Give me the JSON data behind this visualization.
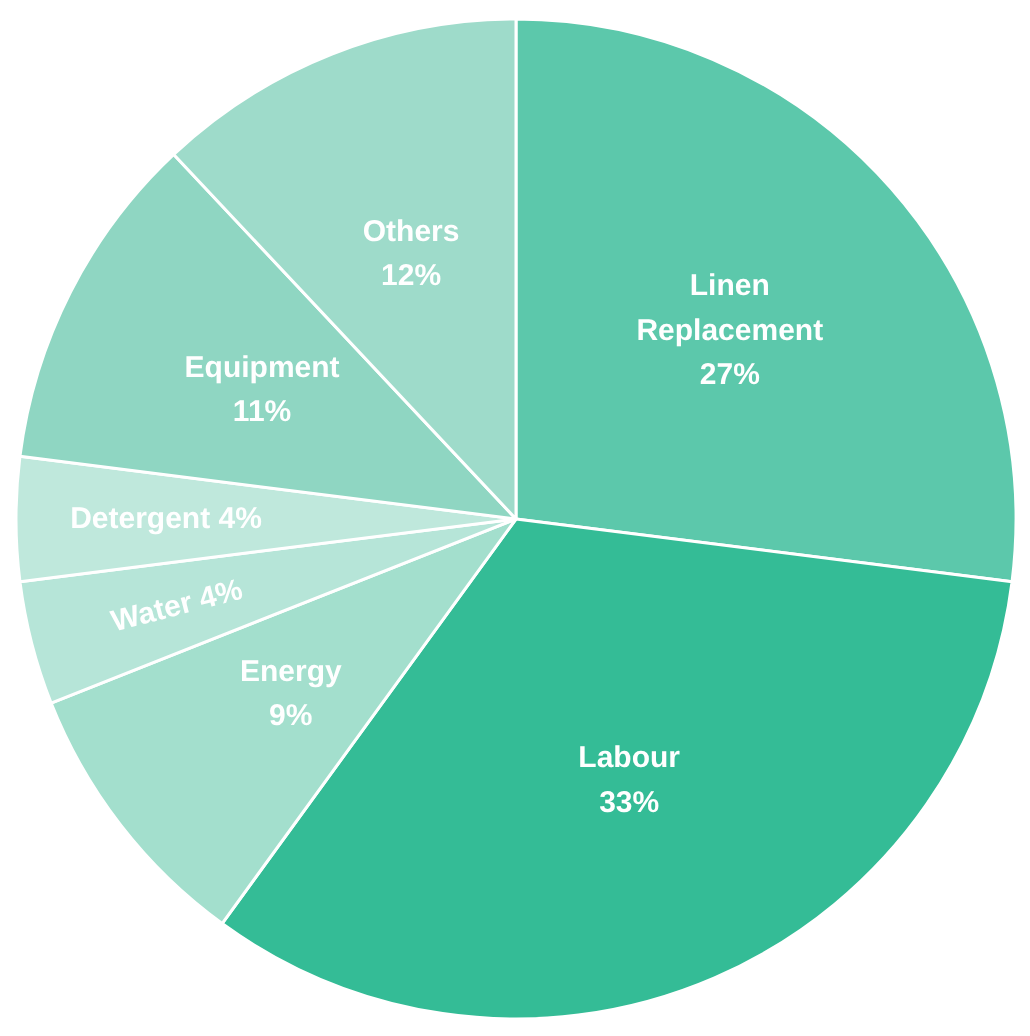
{
  "chart_data": {
    "type": "pie",
    "categories": [
      "Linen Replacement",
      "Labour",
      "Energy",
      "Water",
      "Detergent",
      "Equipment",
      "Others"
    ],
    "values": [
      27,
      33,
      9,
      4,
      4,
      11,
      12
    ],
    "value_labels": [
      "27%",
      "33%",
      "9%",
      "4%",
      "4%",
      "11%",
      "12%"
    ],
    "colors": [
      "#5cc8ab",
      "#34bc96",
      "#a3dfcd",
      "#b6e5d8",
      "#bfe8dc",
      "#8fd6c2",
      "#9edbca"
    ]
  }
}
